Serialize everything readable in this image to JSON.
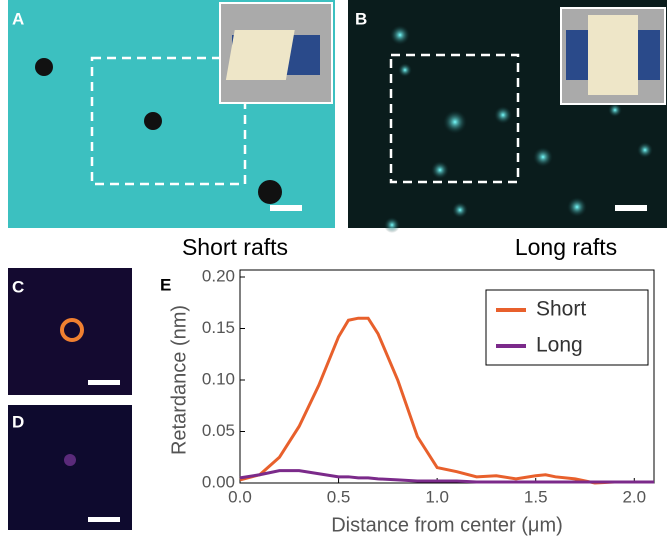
{
  "panels": {
    "a": "A",
    "b": "B",
    "c": "C",
    "d": "D",
    "e": "E"
  },
  "captions": {
    "short": "Short rafts",
    "long": "Long rafts"
  },
  "chart_data": {
    "type": "line",
    "x": [
      0,
      0.1,
      0.2,
      0.3,
      0.4,
      0.5,
      0.55,
      0.6,
      0.65,
      0.7,
      0.8,
      0.9,
      1.0,
      1.1,
      1.2,
      1.3,
      1.4,
      1.5,
      1.55,
      1.6,
      1.7,
      1.8,
      1.9,
      2.0,
      2.1
    ],
    "series": [
      {
        "name": "Short",
        "color": "#e8602c",
        "values": [
          0.003,
          0.008,
          0.025,
          0.055,
          0.095,
          0.142,
          0.158,
          0.16,
          0.16,
          0.145,
          0.1,
          0.045,
          0.015,
          0.011,
          0.006,
          0.007,
          0.004,
          0.007,
          0.008,
          0.006,
          0.004,
          0.0,
          0.001,
          0.001,
          0.001
        ]
      },
      {
        "name": "Long",
        "color": "#7b2a8a",
        "values": [
          0.005,
          0.008,
          0.012,
          0.012,
          0.009,
          0.006,
          0.006,
          0.005,
          0.005,
          0.004,
          0.003,
          0.002,
          0.002,
          0.002,
          0.001,
          0.001,
          0.001,
          0.001,
          0.001,
          0.001,
          0.001,
          0.001,
          0.001,
          0.001,
          0.001
        ]
      }
    ],
    "xlabel": "Distance from center (μm)",
    "ylabel": "Retardance (nm)",
    "xlim": [
      0,
      2.1
    ],
    "ylim": [
      0,
      0.2
    ],
    "xticks": [
      {
        "value": 0,
        "label": "0.0"
      },
      {
        "value": 0.5,
        "label": "0.5"
      },
      {
        "value": 1,
        "label": "1.0"
      },
      {
        "value": 1.5,
        "label": "1.5"
      },
      {
        "value": 2,
        "label": "2.0"
      }
    ],
    "yticks": [
      {
        "value": 0,
        "label": "0.00"
      },
      {
        "value": 0.05,
        "label": "0.05"
      },
      {
        "value": 0.1,
        "label": "0.10"
      },
      {
        "value": 0.15,
        "label": "0.15"
      },
      {
        "value": 0.2,
        "label": "0.20"
      }
    ],
    "legend": "upper-right"
  }
}
